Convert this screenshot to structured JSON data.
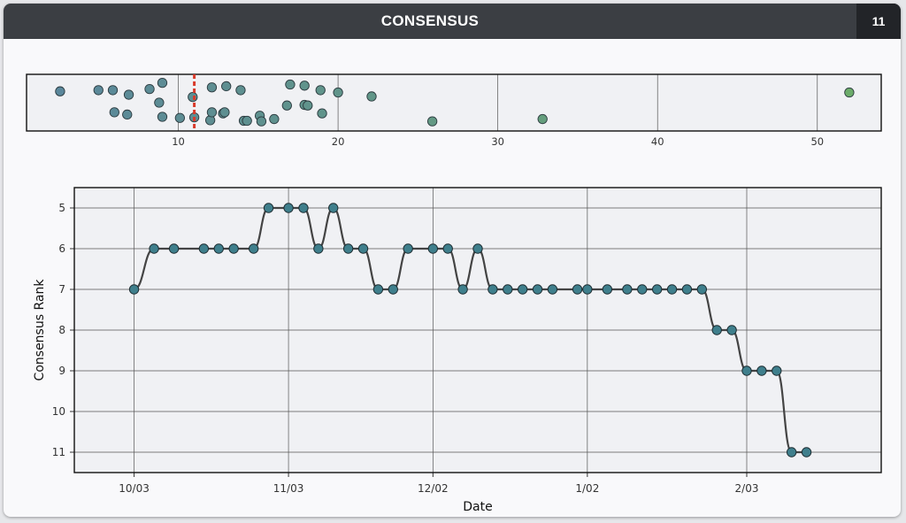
{
  "header": {
    "title": "CONSENSUS",
    "badge": "11"
  },
  "colors": {
    "header_bg": "#3b3e43",
    "badge_bg": "#222428",
    "point": "#3f7f8c",
    "line": "#444444",
    "marker": "#d93b2b"
  },
  "chart_data": [
    {
      "type": "scatter",
      "title": "",
      "xlabel": "",
      "ylabel": "",
      "xlim": [
        0.5,
        54
      ],
      "xticks": [
        10,
        20,
        30,
        40,
        50
      ],
      "grid": true,
      "highlight_x": 11,
      "points": [
        [
          2.6,
          0.7
        ],
        [
          5.0,
          0.72
        ],
        [
          5.9,
          0.72
        ],
        [
          6.9,
          0.64
        ],
        [
          8.2,
          0.74
        ],
        [
          9.0,
          0.85
        ],
        [
          8.8,
          0.5
        ],
        [
          6.0,
          0.33
        ],
        [
          6.8,
          0.29
        ],
        [
          9.0,
          0.25
        ],
        [
          10.1,
          0.23
        ],
        [
          10.9,
          0.6
        ],
        [
          11.0,
          0.24
        ],
        [
          12.0,
          0.19
        ],
        [
          12.1,
          0.33
        ],
        [
          12.8,
          0.31
        ],
        [
          12.9,
          0.33
        ],
        [
          12.1,
          0.77
        ],
        [
          13.0,
          0.79
        ],
        [
          13.9,
          0.72
        ],
        [
          14.1,
          0.18
        ],
        [
          14.3,
          0.18
        ],
        [
          15.1,
          0.27
        ],
        [
          15.2,
          0.17
        ],
        [
          16.0,
          0.21
        ],
        [
          16.8,
          0.45
        ],
        [
          17.0,
          0.82
        ],
        [
          17.9,
          0.46
        ],
        [
          18.1,
          0.45
        ],
        [
          17.9,
          0.8
        ],
        [
          18.9,
          0.72
        ],
        [
          19.0,
          0.31
        ],
        [
          20.0,
          0.68
        ],
        [
          22.1,
          0.61
        ],
        [
          25.9,
          0.17
        ],
        [
          32.8,
          0.21
        ],
        [
          52.0,
          0.68
        ]
      ]
    },
    {
      "type": "line",
      "title": "",
      "xlabel": "Date",
      "ylabel": "Consensus Rank",
      "x_ticks": [
        "10/03",
        "11/03",
        "12/02",
        "1/02",
        "2/03"
      ],
      "x_tick_days": [
        0,
        31,
        60,
        91,
        123
      ],
      "ylim": [
        4.5,
        11.5
      ],
      "yticks": [
        5,
        6,
        7,
        8,
        9,
        10,
        11
      ],
      "grid": true,
      "points": [
        [
          0,
          7
        ],
        [
          4,
          6
        ],
        [
          8,
          6
        ],
        [
          14,
          6
        ],
        [
          17,
          6
        ],
        [
          20,
          6
        ],
        [
          24,
          6
        ],
        [
          27,
          5
        ],
        [
          31,
          5
        ],
        [
          34,
          5
        ],
        [
          37,
          6
        ],
        [
          40,
          5
        ],
        [
          43,
          6
        ],
        [
          46,
          6
        ],
        [
          49,
          7
        ],
        [
          52,
          7
        ],
        [
          55,
          6
        ],
        [
          60,
          6
        ],
        [
          63,
          6
        ],
        [
          66,
          7
        ],
        [
          69,
          6
        ],
        [
          72,
          7
        ],
        [
          75,
          7
        ],
        [
          78,
          7
        ],
        [
          81,
          7
        ],
        [
          84,
          7
        ],
        [
          89,
          7
        ],
        [
          91,
          7
        ],
        [
          95,
          7
        ],
        [
          99,
          7
        ],
        [
          102,
          7
        ],
        [
          105,
          7
        ],
        [
          108,
          7
        ],
        [
          111,
          7
        ],
        [
          114,
          7
        ],
        [
          117,
          8
        ],
        [
          120,
          8
        ],
        [
          123,
          9
        ],
        [
          126,
          9
        ],
        [
          129,
          9
        ],
        [
          132,
          11
        ],
        [
          135,
          11
        ]
      ]
    }
  ]
}
